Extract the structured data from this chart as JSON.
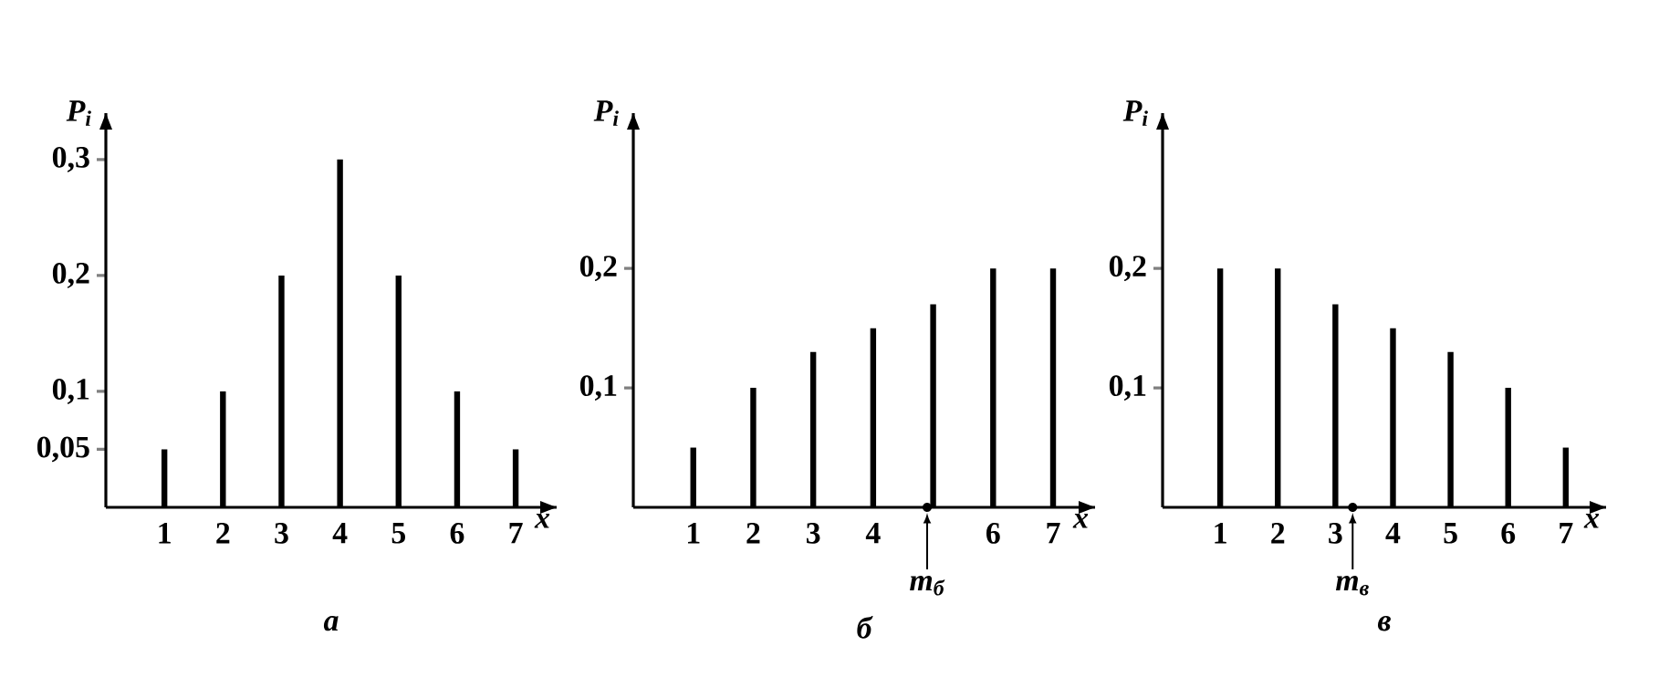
{
  "chart_data": [
    {
      "type": "bar",
      "title": "а",
      "xlabel": "x",
      "ylabel": "P$_{i}$",
      "x": [
        1,
        2,
        3,
        4,
        5,
        6,
        7
      ],
      "series": [
        {
          "color": "#000000",
          "values": [
            0.05,
            0.1,
            0.2,
            0.3,
            0.2,
            0.1,
            0.05
          ]
        }
      ],
      "xlim": [
        0,
        7.7
      ],
      "ylim": [
        0,
        0.34
      ],
      "xticks": [
        1,
        2,
        3,
        4,
        5,
        6,
        7
      ],
      "yticks": [
        {
          "value": 0.05,
          "label": "0,05"
        },
        {
          "value": 0.1,
          "label": "0,1"
        },
        {
          "value": 0.2,
          "label": "0,2"
        },
        {
          "value": 0.3,
          "label": "0,3"
        }
      ]
    },
    {
      "type": "bar",
      "title": "б",
      "xlabel": "x",
      "ylabel": "P$_{i}$",
      "x": [
        1,
        2,
        3,
        4,
        5,
        6,
        7
      ],
      "series": [
        {
          "color": "#000000",
          "values": [
            0.05,
            0.1,
            0.13,
            0.15,
            0.17,
            0.2,
            0.2
          ]
        }
      ],
      "xlim": [
        0,
        7.7
      ],
      "ylim": [
        0,
        0.33
      ],
      "xticks": [
        1,
        2,
        3,
        4,
        6,
        7
      ],
      "yticks": [
        {
          "value": 0.1,
          "label": "0,1"
        },
        {
          "value": 0.2,
          "label": "0,2"
        }
      ],
      "annotations": [
        {
          "text": "m$_{б}$",
          "x": 4.9,
          "y": 0
        }
      ]
    },
    {
      "type": "bar",
      "title": "в",
      "xlabel": "x",
      "ylabel": "P$_{i}$",
      "x": [
        1,
        2,
        3,
        4,
        5,
        6,
        7
      ],
      "series": [
        {
          "color": "#000000",
          "values": [
            0.2,
            0.2,
            0.17,
            0.15,
            0.13,
            0.1,
            0.05
          ]
        }
      ],
      "xlim": [
        0,
        7.7
      ],
      "ylim": [
        0,
        0.33
      ],
      "xticks": [
        1,
        2,
        3,
        4,
        5,
        6,
        7
      ],
      "yticks": [
        {
          "value": 0.1,
          "label": "0,1"
        },
        {
          "value": 0.2,
          "label": "0,2"
        }
      ],
      "annotations": [
        {
          "text": "m$_{в}$",
          "x": 3.3,
          "y": 0
        }
      ]
    }
  ]
}
